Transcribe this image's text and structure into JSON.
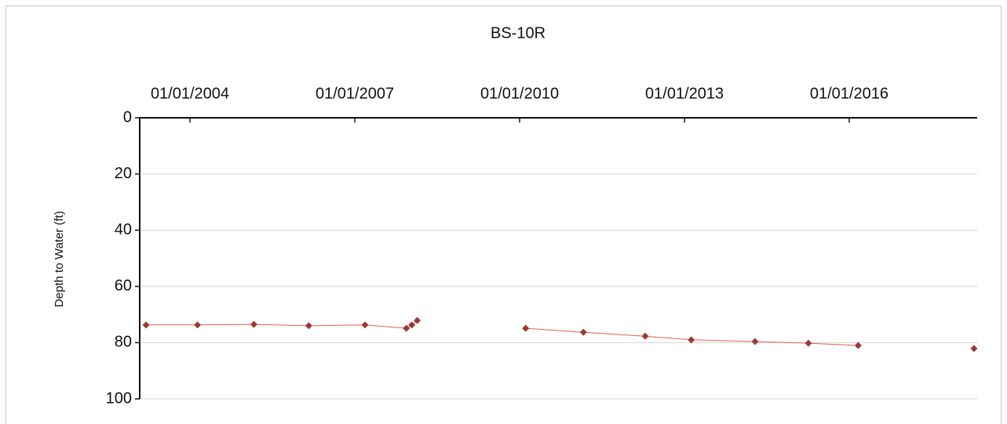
{
  "chart_data": {
    "type": "line",
    "title": "BS-10R",
    "y_label": "Depth to Water (ft)",
    "x": [
      "2003-03-15",
      "2004-02-20",
      "2005-03-01",
      "2006-03-01",
      "2007-03-10",
      "2007-12-10",
      "2008-01-15",
      "2008-02-20",
      null,
      "2010-02-10",
      "2011-03-01",
      "2012-04-15",
      "2013-02-15",
      "2014-04-15",
      "2015-04-05",
      "2016-03-01",
      null,
      "2018-04-10"
    ],
    "series": [
      {
        "name": "BS-10R",
        "color": "#9a3a34",
        "line_color": "#e0654a",
        "values": [
          73.7,
          73.7,
          73.5,
          74.0,
          73.7,
          74.9,
          73.7,
          72.1,
          null,
          74.9,
          76.3,
          77.7,
          79.0,
          79.6,
          80.2,
          81.0,
          null,
          82.1
        ]
      }
    ],
    "xlim": [
      "2003-02-01",
      "2018-05-01"
    ],
    "xticks": [
      {
        "value": "2004-01-01",
        "label": "01/01/2004"
      },
      {
        "value": "2007-01-01",
        "label": "01/01/2007"
      },
      {
        "value": "2010-01-01",
        "label": "01/01/2010"
      },
      {
        "value": "2013-01-01",
        "label": "01/01/2013"
      },
      {
        "value": "2016-01-01",
        "label": "01/01/2016"
      }
    ],
    "ylim": [
      0,
      100
    ],
    "y_inverted": true,
    "yticks": [
      0,
      20,
      40,
      60,
      80,
      100
    ],
    "grid": true
  }
}
